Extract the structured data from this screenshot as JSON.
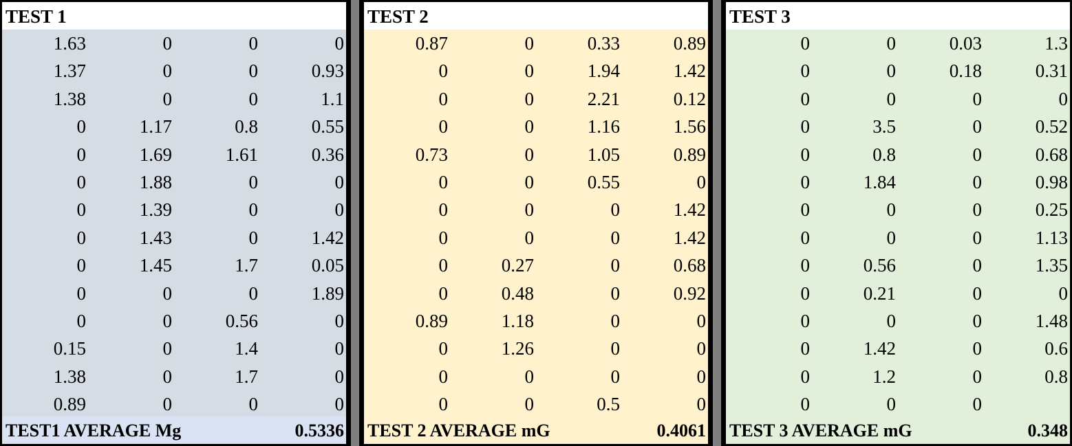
{
  "panels": [
    {
      "title": "TEST 1",
      "rows": [
        [
          1.63,
          0,
          0,
          0
        ],
        [
          1.37,
          0,
          0,
          0.93
        ],
        [
          1.38,
          0,
          0,
          1.1
        ],
        [
          0,
          1.17,
          0.8,
          0.55
        ],
        [
          0,
          1.69,
          1.61,
          0.36
        ],
        [
          0,
          1.88,
          0,
          0
        ],
        [
          0,
          1.39,
          0,
          0
        ],
        [
          0,
          1.43,
          0,
          1.42
        ],
        [
          0,
          1.45,
          1.7,
          0.05
        ],
        [
          0,
          0,
          0,
          1.89
        ],
        [
          0,
          0,
          0.56,
          0
        ],
        [
          0.15,
          0,
          1.4,
          0
        ],
        [
          1.38,
          0,
          1.7,
          0
        ],
        [
          0.89,
          0,
          0,
          0
        ]
      ],
      "average_label": "TEST1 AVERAGE Mg",
      "average_value": 0.5336
    },
    {
      "title": "TEST 2",
      "rows": [
        [
          0.87,
          0,
          0.33,
          0.89
        ],
        [
          0,
          0,
          1.94,
          1.42
        ],
        [
          0,
          0,
          2.21,
          0.12
        ],
        [
          0,
          0,
          1.16,
          1.56
        ],
        [
          0.73,
          0,
          1.05,
          0.89
        ],
        [
          0,
          0,
          0.55,
          0
        ],
        [
          0,
          0,
          0,
          1.42
        ],
        [
          0,
          0,
          0,
          1.42
        ],
        [
          0,
          0.27,
          0,
          0.68
        ],
        [
          0,
          0.48,
          0,
          0.92
        ],
        [
          0.89,
          1.18,
          0,
          0
        ],
        [
          0,
          1.26,
          0,
          0
        ],
        [
          0,
          0,
          0,
          0
        ],
        [
          0,
          0,
          0.5,
          0
        ]
      ],
      "average_label": "TEST 2 AVERAGE mG",
      "average_value": 0.4061
    },
    {
      "title": "TEST 3",
      "rows": [
        [
          0,
          0,
          0.03,
          1.3
        ],
        [
          0,
          0,
          0.18,
          0.31
        ],
        [
          0,
          0,
          0,
          0
        ],
        [
          0,
          3.5,
          0,
          0.52
        ],
        [
          0,
          0.8,
          0,
          0.68
        ],
        [
          0,
          1.84,
          0,
          0.98
        ],
        [
          0,
          0,
          0,
          0.25
        ],
        [
          0,
          0,
          0,
          1.13
        ],
        [
          0,
          0.56,
          0,
          1.35
        ],
        [
          0,
          0.21,
          0,
          0
        ],
        [
          0,
          0,
          0,
          1.48
        ],
        [
          0,
          1.42,
          0,
          0.6
        ],
        [
          0,
          1.2,
          0,
          0.8
        ],
        [
          0,
          0,
          0
        ]
      ],
      "average_label": "TEST 3 AVERAGE mG",
      "average_value": 0.348
    }
  ]
}
